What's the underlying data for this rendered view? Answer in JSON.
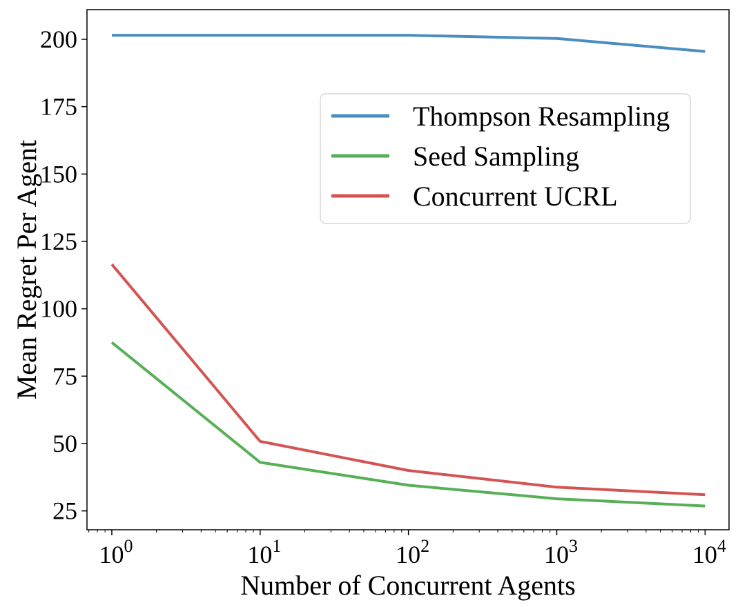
{
  "chart_data": {
    "type": "line",
    "xscale": "log",
    "xlabel": "Number of Concurrent Agents",
    "ylabel": "Mean Regret Per Agent",
    "x": [
      1,
      10,
      100,
      1000,
      10000
    ],
    "xlim": [
      0.68,
      14500
    ],
    "ylim": [
      18,
      211
    ],
    "x_ticks": [
      {
        "value": 1,
        "base": "10",
        "exp": "0"
      },
      {
        "value": 10,
        "base": "10",
        "exp": "1"
      },
      {
        "value": 100,
        "base": "10",
        "exp": "2"
      },
      {
        "value": 1000,
        "base": "10",
        "exp": "3"
      },
      {
        "value": 10000,
        "base": "10",
        "exp": "4"
      }
    ],
    "y_ticks": [
      {
        "value": 25,
        "label": "25"
      },
      {
        "value": 50,
        "label": "50"
      },
      {
        "value": 75,
        "label": "75"
      },
      {
        "value": 100,
        "label": "100"
      },
      {
        "value": 125,
        "label": "125"
      },
      {
        "value": 150,
        "label": "150"
      },
      {
        "value": 175,
        "label": "175"
      },
      {
        "value": 200,
        "label": "200"
      }
    ],
    "series": [
      {
        "name": "Thompson Resampling",
        "color": "#4a8dbf",
        "values": [
          201.5,
          201.5,
          201.5,
          200.3,
          195.5
        ]
      },
      {
        "name": "Seed Sampling",
        "color": "#57af57",
        "values": [
          87.5,
          43.0,
          34.5,
          29.5,
          26.8
        ]
      },
      {
        "name": "Concurrent UCRL",
        "color": "#d45453",
        "values": [
          116.5,
          50.8,
          40.0,
          33.8,
          31.0
        ]
      }
    ],
    "legend": {
      "position": "upper-right"
    },
    "grid": false
  }
}
